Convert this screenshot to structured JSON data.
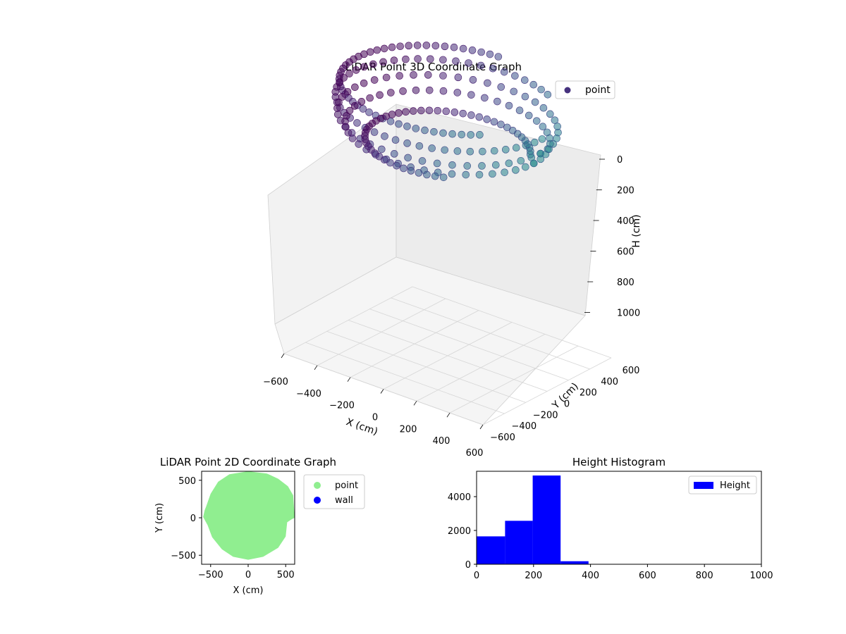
{
  "chart_data": [
    {
      "type": "scatter",
      "projection": "3d",
      "title": "LiDAR Point 3D Coordinate Graph",
      "xlabel": "X (cm)",
      "ylabel": "Y (cm)",
      "zlabel": "H (cm)",
      "xlim": [
        -600,
        600
      ],
      "ylim": [
        -600,
        600
      ],
      "zlim": [
        1000,
        0
      ],
      "xticks": [
        "−600",
        "−400",
        "−200",
        "0",
        "200",
        "400",
        "600"
      ],
      "yticks": [
        "−600",
        "−400",
        "−200",
        "0",
        "200",
        "400",
        "600"
      ],
      "zticks": [
        "0",
        "200",
        "400",
        "600",
        "800",
        "1000"
      ],
      "grid": true,
      "legend": {
        "placement": "upper right",
        "entries": [
          "point"
        ]
      },
      "colormap": "viridis",
      "series": [
        {
          "name": "point",
          "color": "#46327e",
          "rings": [
            {
              "h": 60,
              "radius": 550,
              "arc_start_deg": 95,
              "arc_end_deg": 320
            },
            {
              "h": 160,
              "radius": 570,
              "arc_start_deg": 60,
              "arc_end_deg": 360
            },
            {
              "h": 260,
              "radius": 560,
              "arc_start_deg": 0,
              "arc_end_deg": 360
            },
            {
              "h": 340,
              "radius": 520,
              "arc_start_deg": 0,
              "arc_end_deg": 360
            },
            {
              "h": 420,
              "radius": 420,
              "arc_start_deg": 30,
              "arc_end_deg": 300
            }
          ]
        }
      ]
    },
    {
      "type": "scatter",
      "title": "LiDAR Point 2D Coordinate Graph",
      "xlabel": "X (cm)",
      "ylabel": "Y (cm)",
      "xlim": [
        -620,
        620
      ],
      "ylim": [
        -620,
        620
      ],
      "xticks": [
        "−500",
        "0",
        "500"
      ],
      "yticks": [
        "500",
        "0",
        "−500"
      ],
      "legend": {
        "placement": "outside right",
        "entries": [
          "point",
          "wall"
        ]
      },
      "series": [
        {
          "name": "point",
          "color": "#90ee90",
          "outline": [
            [
              -560,
              150
            ],
            [
              -500,
              320
            ],
            [
              -400,
              480
            ],
            [
              -250,
              580
            ],
            [
              0,
              620
            ],
            [
              250,
              590
            ],
            [
              400,
              520
            ],
            [
              530,
              420
            ],
            [
              600,
              300
            ],
            [
              620,
              0
            ],
            [
              580,
              -20
            ],
            [
              520,
              -60
            ],
            [
              500,
              -250
            ],
            [
              400,
              -400
            ],
            [
              200,
              -520
            ],
            [
              0,
              -560
            ],
            [
              -200,
              -520
            ],
            [
              -350,
              -420
            ],
            [
              -480,
              -260
            ],
            [
              -540,
              -100
            ],
            [
              -600,
              10
            ],
            [
              -580,
              100
            ]
          ]
        },
        {
          "name": "wall",
          "color": "#0000ff"
        }
      ]
    },
    {
      "type": "bar",
      "title": "Height Histogram",
      "xlim": [
        0,
        1000
      ],
      "ylim": [
        0,
        5500
      ],
      "xticks": [
        "0",
        "200",
        "400",
        "600",
        "800",
        "1000"
      ],
      "yticks": [
        "0",
        "2000",
        "4000"
      ],
      "legend": {
        "placement": "upper right",
        "entries": [
          "Height"
        ]
      },
      "series": [
        {
          "name": "Height",
          "color": "#0000ff",
          "bins": [
            [
              0,
              100,
              1650
            ],
            [
              100,
              197,
              2570
            ],
            [
              197,
              295,
              5250
            ],
            [
              295,
              393,
              180
            ]
          ]
        }
      ]
    }
  ]
}
